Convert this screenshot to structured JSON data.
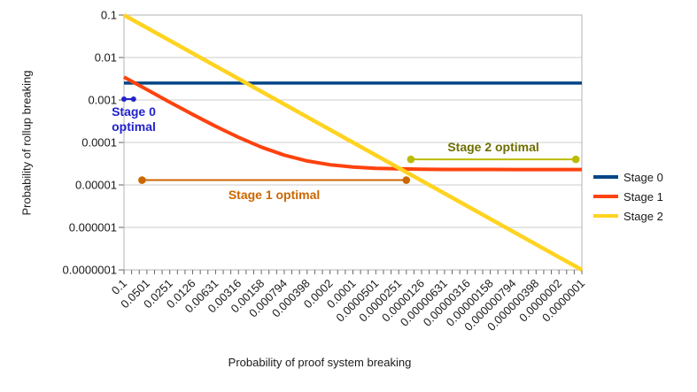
{
  "chart_data": {
    "type": "line",
    "title": "",
    "xlabel": "Probability of proof system breaking",
    "ylabel": "Probability of rollup breaking",
    "x_scale": "log-reversed",
    "y_scale": "log",
    "x_range": [
      0.1,
      1e-07
    ],
    "y_range": [
      0.1,
      1e-07
    ],
    "grid": "horizontal-only",
    "x_ticks": [
      "0.1",
      "0.0501",
      "0.0251",
      "0.0126",
      "0.00631",
      "0.00316",
      "0.00158",
      "0.000794",
      "0.000398",
      "0.0002",
      "0.0001",
      "0.0000501",
      "0.0000251",
      "0.0000126",
      "0.00000631",
      "0.00000316",
      "0.00000158",
      "0.000000794",
      "0.000000398",
      "0.0000002",
      "0.0000001"
    ],
    "x_tick_values": [
      0.1,
      0.0501,
      0.0251,
      0.0126,
      0.00631,
      0.00316,
      0.00158,
      0.000794,
      0.000398,
      0.0002,
      0.0001,
      5.01e-05,
      2.51e-05,
      1.26e-05,
      6.31e-06,
      3.16e-06,
      1.58e-06,
      7.94e-07,
      3.98e-07,
      2e-07,
      1e-07
    ],
    "y_ticks": [
      "0.1",
      "0.01",
      "0.001",
      "0.0001",
      "0.00001",
      "0.000001",
      "0.0000001"
    ],
    "y_tick_values": [
      0.1,
      0.01,
      0.001,
      0.0001,
      1e-05,
      1e-06,
      1e-07
    ],
    "series": [
      {
        "name": "Stage 0",
        "color": "#004586",
        "points": [
          [
            0.1,
            0.0025
          ],
          [
            1e-07,
            0.0025
          ]
        ]
      },
      {
        "name": "Stage 1",
        "color": "#FF420E",
        "points": [
          [
            0.1,
            0.00347
          ],
          [
            0.0501,
            0.00175
          ],
          [
            0.0251,
            0.000889
          ],
          [
            0.0126,
            0.000458
          ],
          [
            0.00631,
            0.000241
          ],
          [
            0.00316,
            0.000132
          ],
          [
            0.00158,
            7.75e-05
          ],
          [
            0.000794,
            5.04e-05
          ],
          [
            0.000398,
            3.67e-05
          ],
          [
            0.0002,
            2.99e-05
          ],
          [
            0.0001,
            2.65e-05
          ],
          [
            5.01e-05,
            2.47e-05
          ],
          [
            2.51e-05,
            2.39e-05
          ],
          [
            1.26e-05,
            2.34e-05
          ],
          [
            6.31e-06,
            2.32e-05
          ],
          [
            3.16e-06,
            2.31e-05
          ],
          [
            1.58e-06,
            2.31e-05
          ],
          [
            7.94e-07,
            2.3e-05
          ],
          [
            3.98e-07,
            2.3e-05
          ],
          [
            2e-07,
            2.3e-05
          ],
          [
            1e-07,
            2.3e-05
          ]
        ]
      },
      {
        "name": "Stage 2",
        "color": "#FFD320",
        "points": [
          [
            0.1,
            0.1
          ],
          [
            1e-07,
            1e-07
          ]
        ]
      }
    ],
    "annotations": [
      {
        "id": "stage0-optimal",
        "text": "Stage 0 optimal",
        "text_lines": [
          "Stage 0",
          "optimal"
        ],
        "line_color": "#2222CC",
        "text_color": "#2222CC",
        "x_from": 0.1,
        "x_to": 0.075,
        "y": 0.00105,
        "label_position": "below-left"
      },
      {
        "id": "stage1-optimal",
        "text": "Stage 1 optimal",
        "text_lines": [
          "Stage 1 optimal"
        ],
        "line_color": "#CC6600",
        "text_color": "#CC6600",
        "x_from": 0.058,
        "x_to": 2e-05,
        "y": 1.3e-05,
        "label_position": "below-center"
      },
      {
        "id": "stage2-optimal",
        "text": "Stage 2 optimal",
        "text_lines": [
          "Stage 2 optimal"
        ],
        "line_color": "#BBBB00",
        "text_color": "#6E6E00",
        "x_from": 1.74e-05,
        "x_to": 1.2e-07,
        "y": 4e-05,
        "label_position": "above-center"
      }
    ],
    "legend": {
      "position": "right",
      "entries": [
        "Stage 0",
        "Stage 1",
        "Stage 2"
      ]
    },
    "colors": {
      "gridline": "#CCCCCC",
      "plot_border": "#B3B3B3",
      "tick": "#666666",
      "tick_label": "#1A1A1A"
    }
  }
}
